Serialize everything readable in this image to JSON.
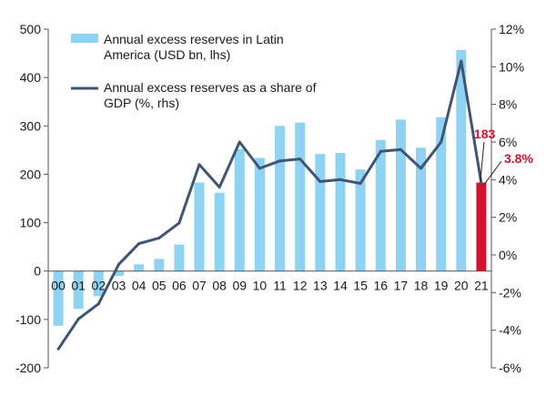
{
  "chart_data": {
    "type": "bar",
    "categories": [
      "00",
      "01",
      "02",
      "03",
      "04",
      "05",
      "06",
      "07",
      "08",
      "09",
      "10",
      "11",
      "12",
      "13",
      "14",
      "15",
      "16",
      "17",
      "18",
      "19",
      "20",
      "21"
    ],
    "series": [
      {
        "name": "Annual excess reserves in Latin America (USD bn, lhs)",
        "type": "bar",
        "axis": "left",
        "values": [
          -113,
          -78,
          -52,
          -10,
          14,
          25,
          55,
          183,
          162,
          252,
          234,
          300,
          307,
          242,
          244,
          210,
          271,
          313,
          255,
          318,
          457,
          183
        ]
      },
      {
        "name": "Annual excess reserves as a share of GDP (%, rhs)",
        "type": "line",
        "axis": "right",
        "values": [
          -5.0,
          -3.4,
          -2.6,
          -0.5,
          0.6,
          0.9,
          1.7,
          4.8,
          3.6,
          6.0,
          4.6,
          5.0,
          5.1,
          3.9,
          4.0,
          3.8,
          5.5,
          5.6,
          4.6,
          6.0,
          10.3,
          3.8
        ]
      }
    ],
    "y_left": {
      "ylim": [
        -200,
        500
      ],
      "ticks": [
        "-200",
        "-100",
        "0",
        "100",
        "200",
        "300",
        "400",
        "500"
      ]
    },
    "y_right": {
      "ylim": [
        -6,
        12
      ],
      "ticks": [
        "-6%",
        "-4%",
        "-2%",
        "0%",
        "2%",
        "4%",
        "6%",
        "8%",
        "10%",
        "12%"
      ]
    },
    "legend": {
      "bar_lines": [
        "Annual excess reserves in Latin",
        "America (USD bn, lhs)"
      ],
      "line_lines": [
        "Annual excess reserves as a share of",
        "GDP (%, rhs)"
      ],
      "placement": "top-left"
    },
    "annotations": {
      "last_bar_label": "183",
      "last_line_label": "3.8%"
    },
    "highlight_index": 21,
    "grid": false,
    "colors": {
      "bar": "#8fd3f2",
      "bar_highlight": "#d4112e",
      "line": "#3f5573",
      "annotation": "#d4112e",
      "axis": "#555555"
    }
  }
}
